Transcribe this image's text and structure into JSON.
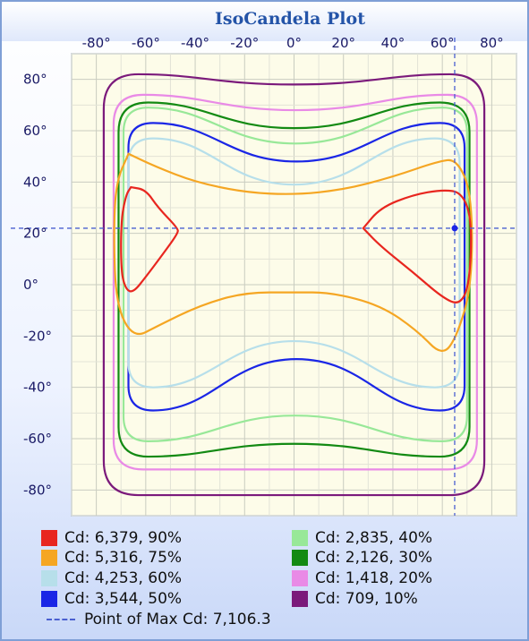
{
  "chart_data": {
    "type": "contour",
    "title": "IsoCandela Plot",
    "x_ticks": [
      "-80°",
      "-60°",
      "-40°",
      "-20°",
      "0°",
      "20°",
      "40°",
      "60°",
      "80°"
    ],
    "y_ticks": [
      "80°",
      "60°",
      "40°",
      "20°",
      "0°",
      "-20°",
      "-40°",
      "-60°",
      "-80°"
    ],
    "xlim": [
      -90,
      90
    ],
    "ylim": [
      -90,
      90
    ],
    "grid": true,
    "legend_position": "bottom",
    "max_point": {
      "x": 65,
      "y": 22
    },
    "series": [
      {
        "label": "Cd: 6,379, 90%",
        "color": "#e8261f",
        "cd": 6379,
        "percent": 90
      },
      {
        "label": "Cd: 5,316, 75%",
        "color": "#f5a623",
        "cd": 5316,
        "percent": 75
      },
      {
        "label": "Cd: 4,253, 60%",
        "color": "#b7dfea",
        "cd": 4253,
        "percent": 60
      },
      {
        "label": "Cd: 3,544, 50%",
        "color": "#1a26e6",
        "cd": 3544,
        "percent": 50
      },
      {
        "label": "Cd: 2,835, 40%",
        "color": "#98e898",
        "cd": 2835,
        "percent": 40
      },
      {
        "label": "Cd: 2,126, 30%",
        "color": "#138a13",
        "cd": 2126,
        "percent": 30
      },
      {
        "label": "Cd: 1,418, 20%",
        "color": "#e98ae6",
        "cd": 1418,
        "percent": 20
      },
      {
        "label": "Cd: 709, 10%",
        "color": "#7b1a7b",
        "cd": 709,
        "percent": 10
      }
    ],
    "max_label": "Point of Max Cd: 7,106.3"
  }
}
